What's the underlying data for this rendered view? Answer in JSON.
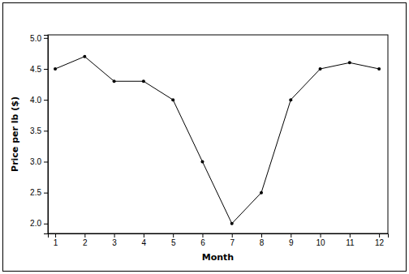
{
  "chart_data": {
    "type": "line",
    "x_label": "Month",
    "y_label": "Price per lb ($)",
    "x": [
      1,
      2,
      3,
      4,
      5,
      6,
      7,
      8,
      9,
      10,
      11,
      12
    ],
    "values": [
      4.5,
      4.7,
      4.3,
      4.3,
      4.0,
      3.0,
      2.0,
      2.5,
      4.0,
      4.5,
      4.6,
      4.5
    ],
    "color": "#000000",
    "marker": "circle",
    "line_style": "solid",
    "xlim": [
      0.75,
      12.3
    ],
    "xticks": [
      1,
      2,
      3,
      4,
      5,
      6,
      7,
      8,
      9,
      10,
      11,
      12
    ],
    "ylim": [
      1.84,
      5.05
    ],
    "yticks": [
      {
        "value": 2,
        "label": "2.0"
      },
      {
        "value": 2.5,
        "label": "2.5"
      },
      {
        "value": 3,
        "label": "3.0"
      },
      {
        "value": 3.5,
        "label": "3.5"
      },
      {
        "value": 4,
        "label": "4.0"
      },
      {
        "value": 4.5,
        "label": "4.5"
      },
      {
        "value": 5,
        "label": "5.0"
      }
    ],
    "grid": false
  }
}
